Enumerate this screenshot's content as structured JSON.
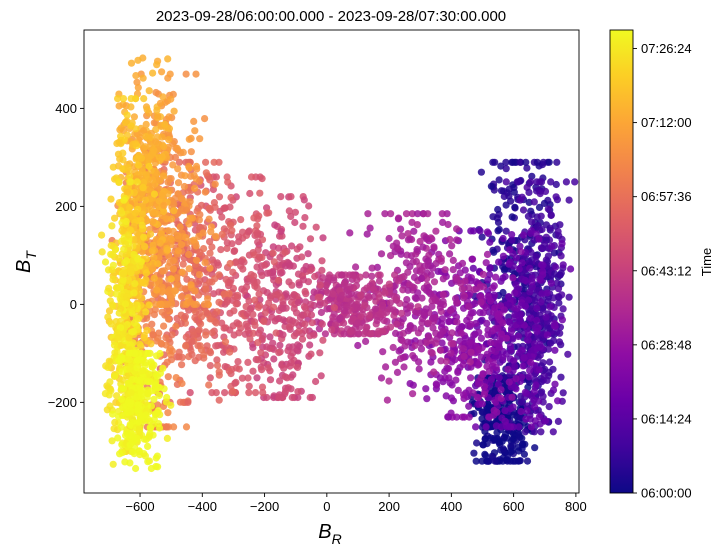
{
  "chart_data": {
    "type": "scatter",
    "title": "2023-09-28/06:00:00.000 - 2023-09-28/07:30:00.000",
    "xlabel": {
      "main": "B",
      "sub": "R"
    },
    "ylabel": {
      "main": "B",
      "sub": "T"
    },
    "xlim": [
      -780,
      810
    ],
    "ylim": [
      -385,
      560
    ],
    "x_ticks": [
      -600,
      -400,
      -200,
      0,
      200,
      400,
      600,
      800
    ],
    "x_tick_labels": [
      "−600",
      "−400",
      "−200",
      "0",
      "200",
      "400",
      "600",
      "800"
    ],
    "y_ticks": [
      -200,
      0,
      200,
      400
    ],
    "y_tick_labels": [
      "−200",
      "0",
      "200",
      "400"
    ],
    "grid": false,
    "colorbar": {
      "label": "Time",
      "colormap": "plasma",
      "range_minutes": [
        0,
        90
      ],
      "tick_minutes": [
        0,
        14.4,
        28.8,
        43.2,
        57.6,
        72,
        86.4
      ],
      "tick_labels": [
        "06:00:00",
        "06:14:24",
        "06:28:48",
        "06:43:12",
        "06:57:36",
        "07:12:00",
        "07:26:24"
      ]
    },
    "clusters": [
      {
        "t_minutes": 0,
        "center_x": 560,
        "center_y": -230,
        "spread_x": 45,
        "spread_y": 60,
        "min_y": -320,
        "max_y": -150
      },
      {
        "t_minutes": 4,
        "center_x": 620,
        "center_y": 80,
        "spread_x": 60,
        "spread_y": 130,
        "min_y": -230,
        "max_y": 290
      },
      {
        "t_minutes": 10,
        "center_x": 680,
        "center_y": 0,
        "spread_x": 45,
        "spread_y": 130,
        "min_y": -260,
        "max_y": 250
      },
      {
        "t_minutes": 18,
        "center_x": 600,
        "center_y": -50,
        "spread_x": 70,
        "spread_y": 110,
        "min_y": -250,
        "max_y": 150
      },
      {
        "t_minutes": 26,
        "center_x": 450,
        "center_y": -70,
        "spread_x": 80,
        "spread_y": 90,
        "min_y": -230,
        "max_y": 130
      },
      {
        "t_minutes": 33,
        "center_x": 290,
        "center_y": 20,
        "spread_x": 90,
        "spread_y": 90,
        "min_y": -200,
        "max_y": 185
      },
      {
        "t_minutes": 39,
        "center_x": 80,
        "center_y": 0,
        "spread_x": 70,
        "spread_y": 40,
        "min_y": -60,
        "max_y": 60
      },
      {
        "t_minutes": 45,
        "center_x": -130,
        "center_y": -20,
        "spread_x": 60,
        "spread_y": 110,
        "min_y": -190,
        "max_y": 220
      },
      {
        "t_minutes": 50,
        "center_x": -300,
        "center_y": 30,
        "spread_x": 70,
        "spread_y": 120,
        "min_y": -180,
        "max_y": 260
      },
      {
        "t_minutes": 56,
        "center_x": -440,
        "center_y": 40,
        "spread_x": 60,
        "spread_y": 130,
        "min_y": -200,
        "max_y": 290
      },
      {
        "t_minutes": 62,
        "center_x": -560,
        "center_y": 20,
        "spread_x": 50,
        "spread_y": 150,
        "min_y": -250,
        "max_y": 300
      },
      {
        "t_minutes": 68,
        "center_x": -500,
        "center_y": 200,
        "spread_x": 60,
        "spread_y": 120,
        "min_y": 0,
        "max_y": 470
      },
      {
        "t_minutes": 74,
        "center_x": -580,
        "center_y": 250,
        "spread_x": 45,
        "spread_y": 110,
        "min_y": 0,
        "max_y": 515
      },
      {
        "t_minutes": 80,
        "center_x": -630,
        "center_y": 80,
        "spread_x": 30,
        "spread_y": 170,
        "min_y": -200,
        "max_y": 420
      },
      {
        "t_minutes": 86,
        "center_x": -650,
        "center_y": -50,
        "spread_x": 28,
        "spread_y": 130,
        "min_y": -300,
        "max_y": 250
      },
      {
        "t_minutes": 90,
        "center_x": -600,
        "center_y": -200,
        "spread_x": 35,
        "spread_y": 70,
        "min_y": -335,
        "max_y": -100
      }
    ]
  }
}
